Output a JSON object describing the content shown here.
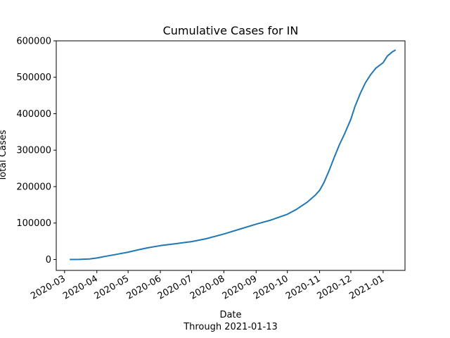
{
  "chart_data": {
    "type": "line",
    "title": "Cumulative Cases for IN",
    "xlabel": "Date",
    "xlabel_sub": "Through 2021-01-13",
    "ylabel": "Total Cases",
    "xlim": [
      "2020-02-22",
      "2021-01-22"
    ],
    "ylim": [
      -30000,
      600000
    ],
    "grid": false,
    "legend": "none",
    "line_color": "#1f77b4",
    "y_ticks": [
      0,
      100000,
      200000,
      300000,
      400000,
      500000,
      600000
    ],
    "y_tick_labels": [
      "0",
      "100000",
      "200000",
      "300000",
      "400000",
      "500000",
      "600000"
    ],
    "x_ticks": [
      "2020-03-01",
      "2020-04-01",
      "2020-05-01",
      "2020-06-01",
      "2020-07-01",
      "2020-08-01",
      "2020-09-01",
      "2020-10-01",
      "2020-11-01",
      "2020-12-01",
      "2021-01-01"
    ],
    "x_tick_labels": [
      "2020-03",
      "2020-04",
      "2020-05",
      "2020-06",
      "2020-07",
      "2020-08",
      "2020-09",
      "2020-10",
      "2020-11",
      "2020-12",
      "2021-01"
    ],
    "series": [
      {
        "x": [
          "2020-03-06",
          "2020-03-15",
          "2020-03-25",
          "2020-04-01",
          "2020-04-10",
          "2020-04-20",
          "2020-05-01",
          "2020-05-10",
          "2020-05-20",
          "2020-06-01",
          "2020-06-15",
          "2020-07-01",
          "2020-07-15",
          "2020-08-01",
          "2020-08-15",
          "2020-09-01",
          "2020-09-15",
          "2020-10-01",
          "2020-10-10",
          "2020-10-20",
          "2020-10-28",
          "2020-11-01",
          "2020-11-05",
          "2020-11-10",
          "2020-11-15",
          "2020-11-20",
          "2020-11-25",
          "2020-12-01",
          "2020-12-05",
          "2020-12-10",
          "2020-12-15",
          "2020-12-20",
          "2020-12-25",
          "2021-01-01",
          "2021-01-05",
          "2021-01-10",
          "2021-01-13"
        ],
        "y": [
          0,
          200,
          1500,
          4000,
          9000,
          14000,
          20000,
          26000,
          32000,
          38000,
          43000,
          49000,
          57000,
          70000,
          82000,
          97000,
          108000,
          124000,
          138000,
          157000,
          177000,
          190000,
          210000,
          243000,
          280000,
          315000,
          345000,
          385000,
          420000,
          455000,
          485000,
          507000,
          525000,
          540000,
          558000,
          570000,
          575000
        ]
      }
    ]
  }
}
